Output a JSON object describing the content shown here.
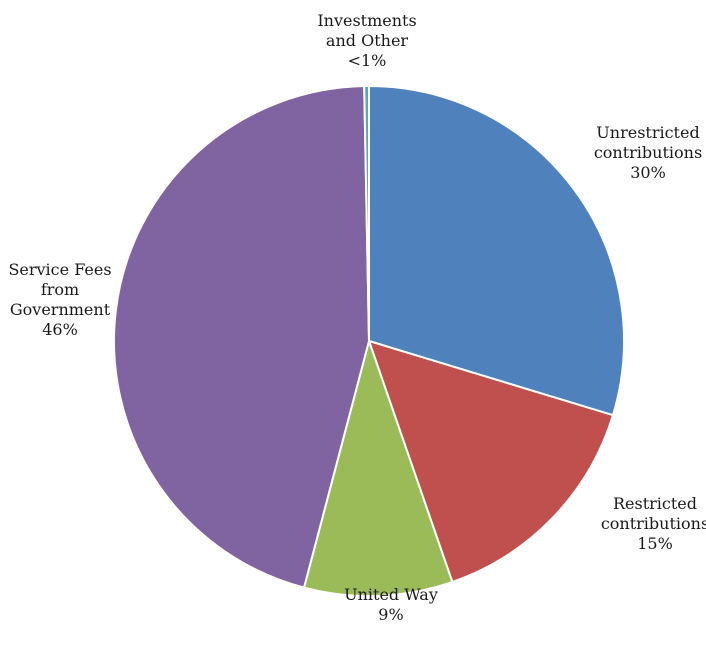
{
  "chart_data": {
    "type": "pie",
    "title": "",
    "slices": [
      {
        "label_lines": [
          "Unrestricted",
          "contributions"
        ],
        "pct_label": "30%",
        "value": 29.7,
        "color": "#4f81bd"
      },
      {
        "label_lines": [
          "Restricted",
          "contributions"
        ],
        "pct_label": "15%",
        "value": 15.0,
        "color": "#c0504d"
      },
      {
        "label_lines": [
          "United Way"
        ],
        "pct_label": "9%",
        "value": 9.4,
        "color": "#9bbb59"
      },
      {
        "label_lines": [
          "Service Fees",
          "from",
          "Government"
        ],
        "pct_label": "46%",
        "value": 45.6,
        "color": "#8064a2"
      },
      {
        "label_lines": [
          "Investments",
          "and Other"
        ],
        "pct_label": "<1%",
        "value": 0.3,
        "color": "#4bacc6"
      }
    ],
    "start_angle_deg": 0,
    "direction": "clockwise",
    "legend": "none"
  }
}
